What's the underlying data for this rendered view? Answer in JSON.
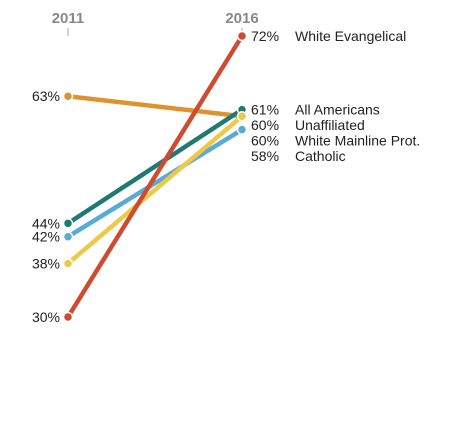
{
  "chart_data": {
    "type": "line",
    "x": [
      "2011",
      "2016"
    ],
    "ylim": [
      30,
      72
    ],
    "grid": false,
    "series": [
      {
        "name": "White Evangelical",
        "values": [
          30,
          72
        ],
        "color": "#cf4a30",
        "label_start": "30%",
        "label_end": "72%"
      },
      {
        "name": "All Americans",
        "values": [
          44,
          61
        ],
        "color": "#1f7a72",
        "label_start": "44%",
        "label_end": "61%"
      },
      {
        "name": "Unaffiliated",
        "values": [
          63,
          60
        ],
        "color": "#e0922f",
        "label_start": "63%",
        "label_end": "60%"
      },
      {
        "name": "White Mainline Prot.",
        "values": [
          38,
          60
        ],
        "color": "#edc948",
        "label_start": "38%",
        "label_end": "60%"
      },
      {
        "name": "Catholic",
        "values": [
          42,
          58
        ],
        "color": "#5aaad6",
        "label_start": "42%",
        "label_end": "58%"
      }
    ]
  }
}
